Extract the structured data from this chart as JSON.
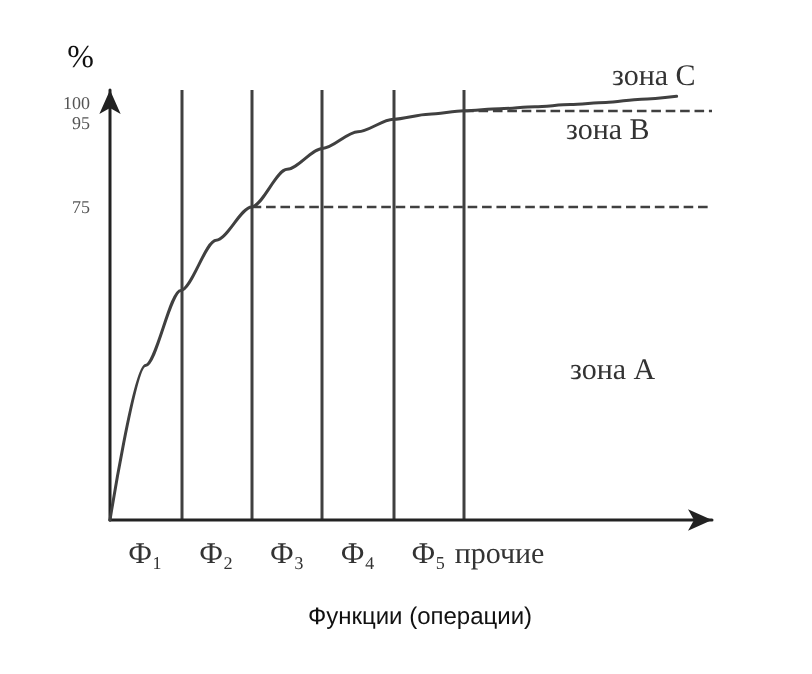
{
  "chart_data": {
    "type": "line",
    "ylabel": "%",
    "xlabel": "Функции (операции)",
    "categories": [
      null,
      "Ф₁",
      null,
      "Ф₂",
      null,
      "Ф₃",
      null,
      "Ф₄",
      null,
      "Ф₅",
      null,
      "прочие",
      null,
      null,
      null,
      null,
      null,
      null
    ],
    "values": [
      0,
      37,
      55,
      67,
      75,
      84,
      89,
      93,
      96,
      97.2,
      98,
      98.5,
      99,
      99.5,
      100,
      100.8,
      101.5,
      null
    ],
    "color": "#404040",
    "marker": "none",
    "line_style": "solid",
    "grid": "x",
    "ylim": [
      0,
      103
    ],
    "yticks": [
      75,
      95,
      100
    ],
    "ref_lines": [
      {
        "axis": "y",
        "value": 75,
        "label": null,
        "color": "#404040",
        "line_style": "dashed"
      },
      {
        "axis": "y",
        "value": 98,
        "label": null,
        "color": "#404040",
        "line_style": "dashed"
      }
    ],
    "annotations": [
      "зона C",
      "зона B",
      "зона A"
    ]
  }
}
